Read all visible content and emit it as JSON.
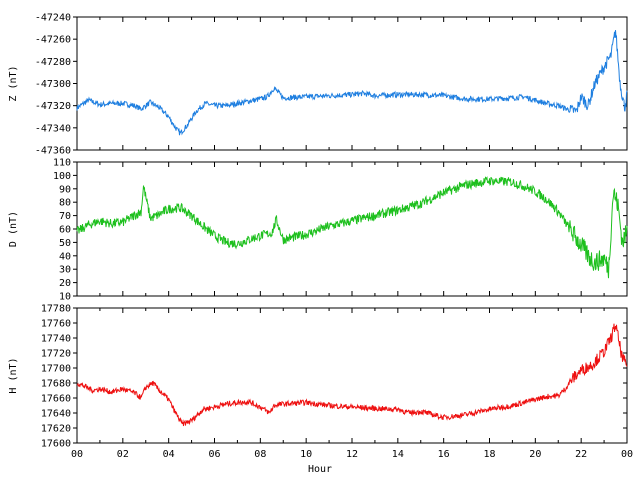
{
  "chart_data": [
    {
      "type": "line",
      "ylabel": "Z (nT)",
      "ylim": [
        -47360,
        -47240
      ],
      "yticks": [
        -47240,
        -47260,
        -47280,
        -47300,
        -47320,
        -47340,
        -47360
      ],
      "color": "#1f7fe0",
      "x": [
        0,
        0.5,
        1,
        1.5,
        2,
        2.5,
        2.8,
        3.2,
        3.6,
        4.0,
        4.3,
        4.5,
        4.8,
        5.2,
        5.6,
        6.0,
        6.5,
        7,
        7.5,
        8,
        8.3,
        8.6,
        9,
        10,
        11,
        12,
        12.5,
        13,
        14,
        15,
        16,
        17,
        18,
        19,
        19.5,
        20,
        20.5,
        21,
        21.5,
        21.8,
        22,
        22.3,
        22.6,
        23,
        23.3,
        23.5,
        23.7,
        23.9,
        24
      ],
      "series": [
        {
          "values": [
            -47322,
            -47315,
            -47319,
            -47318,
            -47318,
            -47320,
            -47323,
            -47317,
            -47322,
            -47330,
            -47340,
            -47345,
            -47338,
            -47325,
            -47318,
            -47320,
            -47320,
            -47318,
            -47316,
            -47314,
            -47312,
            -47304,
            -47313,
            -47312,
            -47311,
            -47310,
            -47309,
            -47311,
            -47310,
            -47310,
            -47311,
            -47314,
            -47314,
            -47313,
            -47312,
            -47315,
            -47318,
            -47320,
            -47324,
            -47325,
            -47312,
            -47320,
            -47300,
            -47285,
            -47275,
            -47252,
            -47300,
            -47322,
            -47310
          ]
        }
      ]
    },
    {
      "type": "line",
      "ylabel": "D (nT)",
      "ylim": [
        10,
        110
      ],
      "yticks": [
        110,
        100,
        90,
        80,
        70,
        60,
        50,
        40,
        30,
        20,
        10
      ],
      "color": "#1ec01e",
      "x": [
        0,
        0.5,
        1,
        1.5,
        2,
        2.5,
        2.8,
        2.9,
        3.2,
        3.5,
        4,
        4.5,
        5,
        5.5,
        6,
        6.5,
        7,
        7.5,
        8,
        8.5,
        8.7,
        9,
        10,
        11,
        12,
        13,
        14,
        15,
        16,
        17,
        18,
        19,
        19.5,
        20,
        20.5,
        21,
        21.5,
        22,
        22.3,
        22.6,
        23,
        23.2,
        23.4,
        23.6,
        23.8,
        24
      ],
      "series": [
        {
          "values": [
            58,
            63,
            66,
            64,
            65,
            70,
            73,
            92,
            68,
            70,
            75,
            76,
            70,
            62,
            55,
            50,
            49,
            52,
            55,
            57,
            67,
            52,
            56,
            62,
            66,
            70,
            74,
            79,
            87,
            93,
            96,
            95,
            92,
            88,
            82,
            73,
            60,
            48,
            40,
            35,
            38,
            30,
            88,
            78,
            50,
            58
          ]
        }
      ]
    },
    {
      "type": "line",
      "ylabel": "H (nT)",
      "xlabel": "Hour",
      "ylim": [
        17600,
        17780
      ],
      "yticks": [
        17780,
        17760,
        17740,
        17720,
        17700,
        17680,
        17660,
        17640,
        17620,
        17600
      ],
      "xlim": [
        0,
        24
      ],
      "xtick_labels": [
        "00",
        "02",
        "04",
        "06",
        "08",
        "10",
        "12",
        "14",
        "16",
        "18",
        "20",
        "22",
        "00"
      ],
      "color": "#ee1111",
      "x": [
        0,
        0.3,
        0.7,
        1,
        1.5,
        2,
        2.5,
        2.8,
        3,
        3.3,
        3.6,
        4,
        4.3,
        4.6,
        5,
        5.5,
        6,
        6.5,
        7,
        7.5,
        8,
        8.4,
        8.6,
        9,
        10,
        11,
        12,
        13,
        14,
        14.5,
        15,
        16,
        17,
        18,
        19,
        20,
        20.5,
        21,
        21.3,
        21.6,
        22,
        22.5,
        23,
        23.3,
        23.5,
        23.8,
        24
      ],
      "series": [
        {
          "values": [
            17680,
            17676,
            17670,
            17672,
            17668,
            17672,
            17667,
            17660,
            17674,
            17680,
            17670,
            17658,
            17640,
            17625,
            17630,
            17645,
            17648,
            17652,
            17654,
            17655,
            17648,
            17640,
            17650,
            17652,
            17654,
            17650,
            17648,
            17646,
            17645,
            17640,
            17642,
            17634,
            17638,
            17645,
            17650,
            17658,
            17662,
            17663,
            17672,
            17685,
            17697,
            17705,
            17722,
            17740,
            17758,
            17712,
            17705
          ]
        }
      ]
    }
  ]
}
